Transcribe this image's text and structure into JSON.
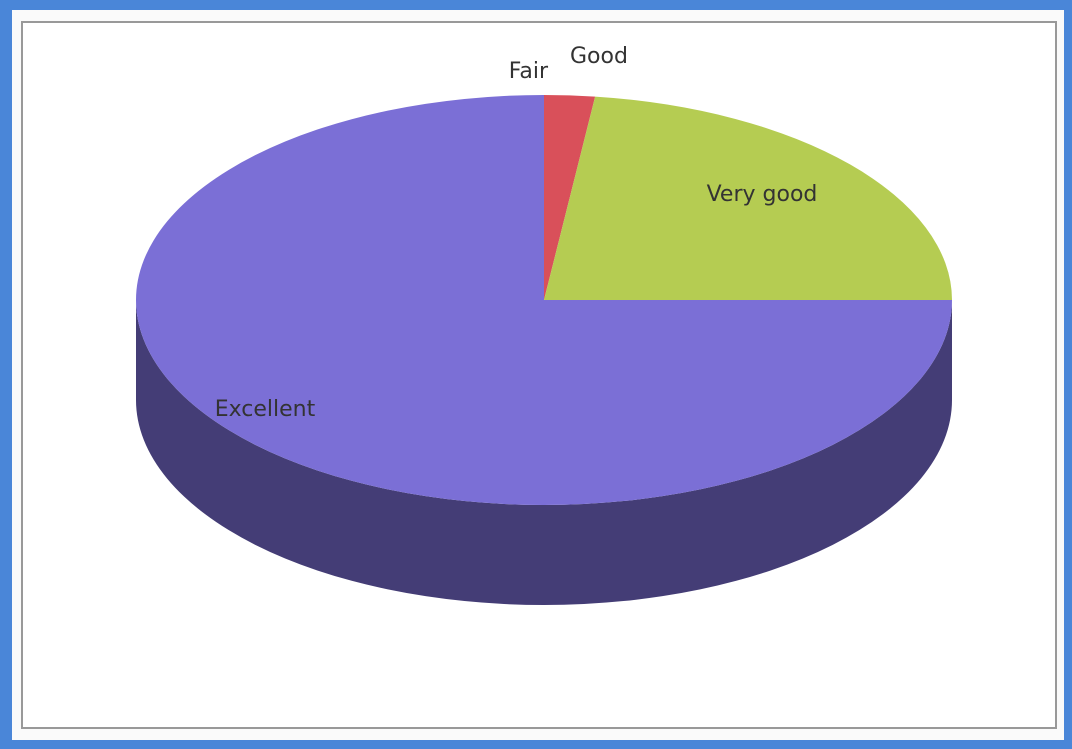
{
  "chart_data": {
    "type": "pie3d",
    "categories": [
      "Fair",
      "Good",
      "Very good",
      "Excellent"
    ],
    "values": [
      0,
      2,
      23,
      75
    ],
    "colors": [
      "#c9a0d0",
      "#d9505a",
      "#b5cc52",
      "#7b6fd6"
    ]
  }
}
